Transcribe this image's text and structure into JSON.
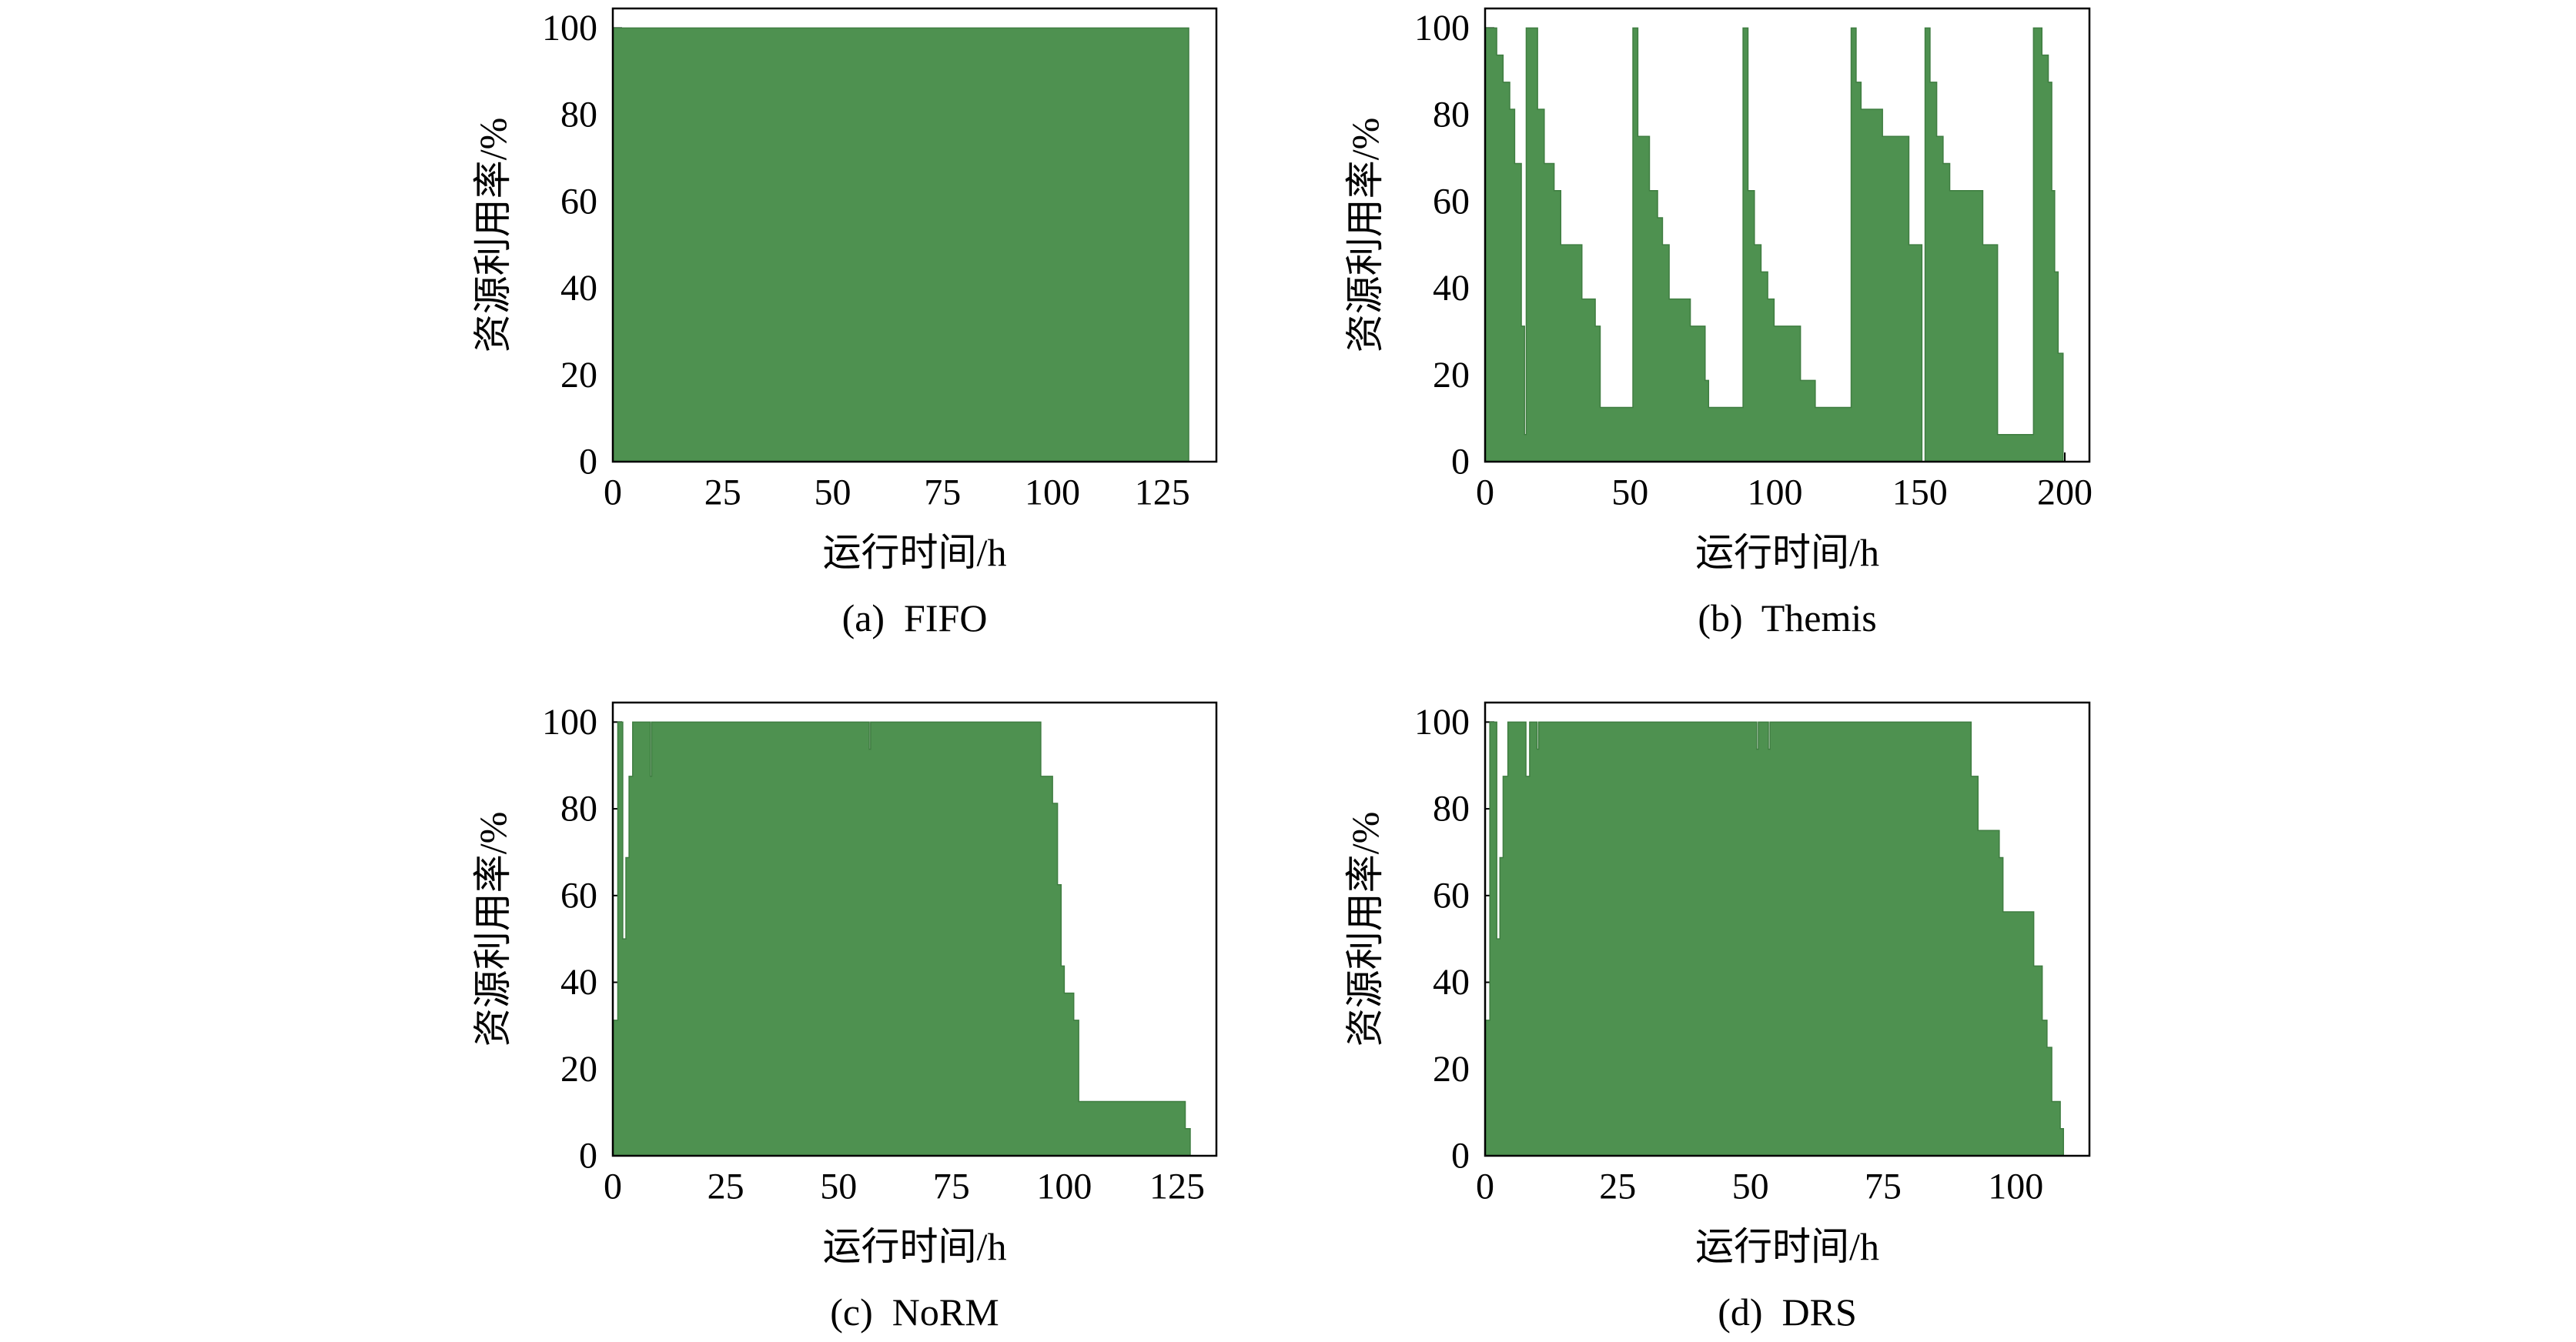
{
  "chart_data": [
    {
      "type": "area",
      "step": "post",
      "title": "(a)  FIFO",
      "xlabel": "运行时间/h",
      "ylabel": "资源利用率/%",
      "xlim": [
        0,
        137.3
      ],
      "ylim": [
        0,
        104.5
      ],
      "xticks": [
        0,
        25,
        50,
        75,
        100,
        125
      ],
      "yticks": [
        0,
        20,
        40,
        60,
        80,
        100
      ],
      "grid": false,
      "color": "#4e9150",
      "x": [
        0,
        131
      ],
      "y": [
        100,
        0
      ]
    },
    {
      "type": "area",
      "step": "post",
      "title": "(b)  Themis",
      "xlabel": "运行时间/h",
      "ylabel": "资源利用率/%",
      "xlim": [
        0,
        208.5
      ],
      "ylim": [
        0,
        104.5
      ],
      "xticks": [
        0,
        50,
        100,
        150,
        200
      ],
      "yticks": [
        0,
        20,
        40,
        60,
        80,
        100
      ],
      "grid": false,
      "color": "#4e9150",
      "x": [
        0,
        4.0,
        6.2,
        8.5,
        10.2,
        12.5,
        13.6,
        14.2,
        18.1,
        20.4,
        23.8,
        26.1,
        33.4,
        38.0,
        39.7,
        51.0,
        52.7,
        56.7,
        59.5,
        61.2,
        63.5,
        70.8,
        75.9,
        77.1,
        89.0,
        90.7,
        92.9,
        95.2,
        97.5,
        99.7,
        108.8,
        113.9,
        126.3,
        128.0,
        129.7,
        137.1,
        146.2,
        150.7,
        151.8,
        153.5,
        155.8,
        158.0,
        160.3,
        171.7,
        176.8,
        189.2,
        192.1,
        194.3,
        195.5,
        196.5,
        197.7,
        199.4
      ],
      "y": [
        100,
        93.75,
        87.5,
        81.25,
        68.75,
        31.25,
        6.25,
        100,
        81.25,
        68.75,
        62.5,
        50,
        37.5,
        31.25,
        12.5,
        100,
        75,
        62.5,
        56.25,
        50,
        37.5,
        31.25,
        18.75,
        12.5,
        100,
        62.5,
        50,
        43.75,
        37.5,
        31.25,
        18.75,
        12.5,
        100,
        87.5,
        81.25,
        75,
        50,
        0,
        100,
        87.5,
        75,
        68.75,
        62.5,
        50,
        6.25,
        100,
        93.75,
        87.5,
        62.5,
        43.75,
        25,
        0
      ]
    },
    {
      "type": "area",
      "step": "post",
      "title": "(c)  NoRM",
      "xlabel": "运行时间/h",
      "ylabel": "资源利用率/%",
      "xlim": [
        0,
        133.7
      ],
      "ylim": [
        0,
        104.5
      ],
      "xticks": [
        0,
        25,
        50,
        75,
        100,
        125
      ],
      "yticks": [
        0,
        20,
        40,
        60,
        80,
        100
      ],
      "grid": false,
      "color": "#4e9150",
      "x": [
        0,
        1.1,
        2.2,
        2.9,
        3.6,
        4.4,
        8.3,
        8.6,
        56.8,
        57.1,
        94.8,
        97.4,
        98.5,
        99.3,
        100.0,
        102.1,
        103.2,
        126.8,
        127.9
      ],
      "y": [
        31.25,
        100,
        50,
        68.75,
        87.5,
        100,
        87.5,
        100,
        93.75,
        100,
        87.5,
        81.25,
        62.5,
        43.75,
        37.5,
        31.25,
        12.5,
        6.25,
        0
      ]
    },
    {
      "type": "area",
      "step": "post",
      "title": "(d)  DRS",
      "xlabel": "运行时间/h",
      "ylabel": "资源利用率/%",
      "xlim": [
        0,
        113.9
      ],
      "ylim": [
        0,
        104.5
      ],
      "xticks": [
        0,
        25,
        50,
        75,
        100
      ],
      "yticks": [
        0,
        20,
        40,
        60,
        80,
        100
      ],
      "grid": false,
      "color": "#4e9150",
      "x": [
        0,
        0.9,
        2.2,
        2.8,
        3.4,
        4.3,
        7.7,
        8.4,
        9.8,
        10.1,
        51.2,
        51.5,
        53.4,
        53.7,
        91.6,
        92.9,
        96.9,
        97.6,
        103.4,
        105.0,
        105.9,
        106.8,
        108.4,
        109.0
      ],
      "y": [
        31.25,
        100,
        50,
        68.75,
        87.5,
        100,
        87.5,
        100,
        93.75,
        100,
        93.75,
        100,
        93.75,
        100,
        87.5,
        75,
        68.75,
        56.25,
        43.75,
        31.25,
        25,
        12.5,
        6.25,
        0
      ]
    }
  ]
}
